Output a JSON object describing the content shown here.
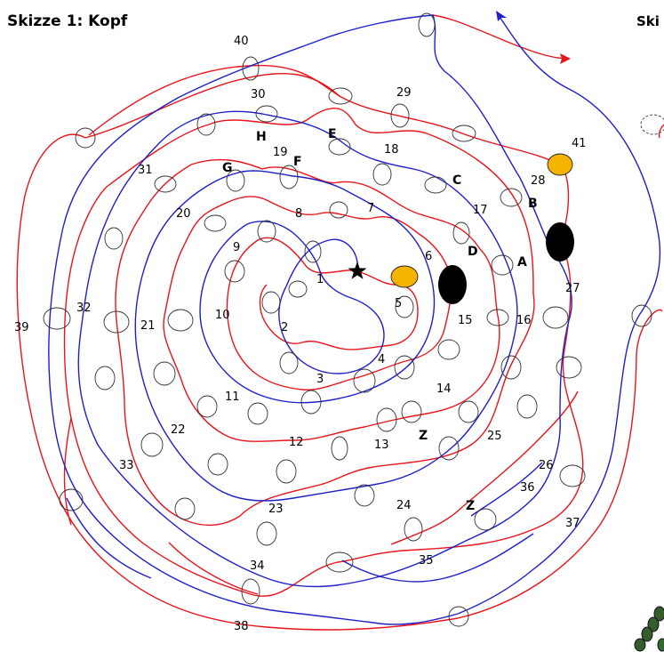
{
  "title": "Skizze 1: Kopf",
  "side_title": "Ski",
  "numbers": [
    "40",
    "30",
    "29",
    "41",
    "28",
    "19",
    "18",
    "17",
    "31",
    "20",
    "8",
    "7",
    "9",
    "6",
    "1",
    "5",
    "27",
    "32",
    "21",
    "10",
    "2",
    "15",
    "16",
    "39",
    "4",
    "3",
    "14",
    "11",
    "22",
    "12",
    "13",
    "25",
    "26",
    "33",
    "36",
    "23",
    "24",
    "37",
    "34",
    "35",
    "38"
  ],
  "letters": [
    "E",
    "H",
    "F",
    "G",
    "B",
    "D",
    "A",
    "Z",
    "Z"
  ],
  "colors": {
    "red_thread": "#e8141b",
    "blue_thread": "#1d20c8",
    "yellow_bead": "#f5b400",
    "black_bead": "#000000"
  },
  "markers": {
    "start": "star-icon",
    "end_arrows": [
      "arrow-red-icon",
      "arrow-blue-icon"
    ]
  }
}
